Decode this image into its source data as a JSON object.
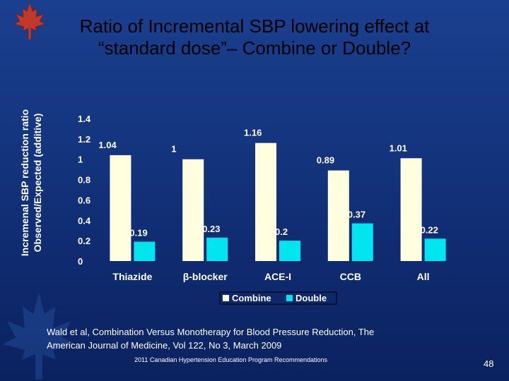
{
  "slide": {
    "title_line1": "Ratio of Incremental SBP lowering effect at",
    "title_line2": "“standard dose”– Combine or Double?",
    "citation_line1": "Wald et al, Combination Versus Monotherapy for Blood Pressure Reduction, The",
    "citation_line2": "American Journal of Medicine, Vol 122, No 3, March 2009",
    "footer": "2011 Canadian Hypertension Education Program Recommendations",
    "page_number": "48"
  },
  "colors": {
    "combine": "#FFFFE0",
    "double": "#00E5F0",
    "leaf": "#C0392B"
  },
  "chart_data": {
    "type": "bar",
    "title": "",
    "ylabel_line1": "Incremenal SBP reduction ratio",
    "ylabel_line2": "Observed/Expected (additive)",
    "xlabel": "",
    "ylim": [
      0,
      1.4
    ],
    "yticks": [
      "0",
      "0.2",
      "0.4",
      "0.6",
      "0.8",
      "1",
      "1.2",
      "1.4"
    ],
    "categories": [
      "Thiazide",
      "β-blocker",
      "ACE-I",
      "CCB",
      "All"
    ],
    "series": [
      {
        "name": "Combine",
        "values": [
          1.04,
          1,
          1.16,
          0.89,
          1.01
        ],
        "labels": [
          "1.04",
          "1",
          "1.16",
          "0.89",
          "1.01"
        ]
      },
      {
        "name": "Double",
        "values": [
          0.19,
          0.23,
          0.2,
          0.37,
          0.22
        ],
        "labels": [
          "0.19",
          "0.23",
          "0.2",
          "0.37",
          "0.22"
        ]
      }
    ],
    "legend": "bottom",
    "grid": false
  }
}
